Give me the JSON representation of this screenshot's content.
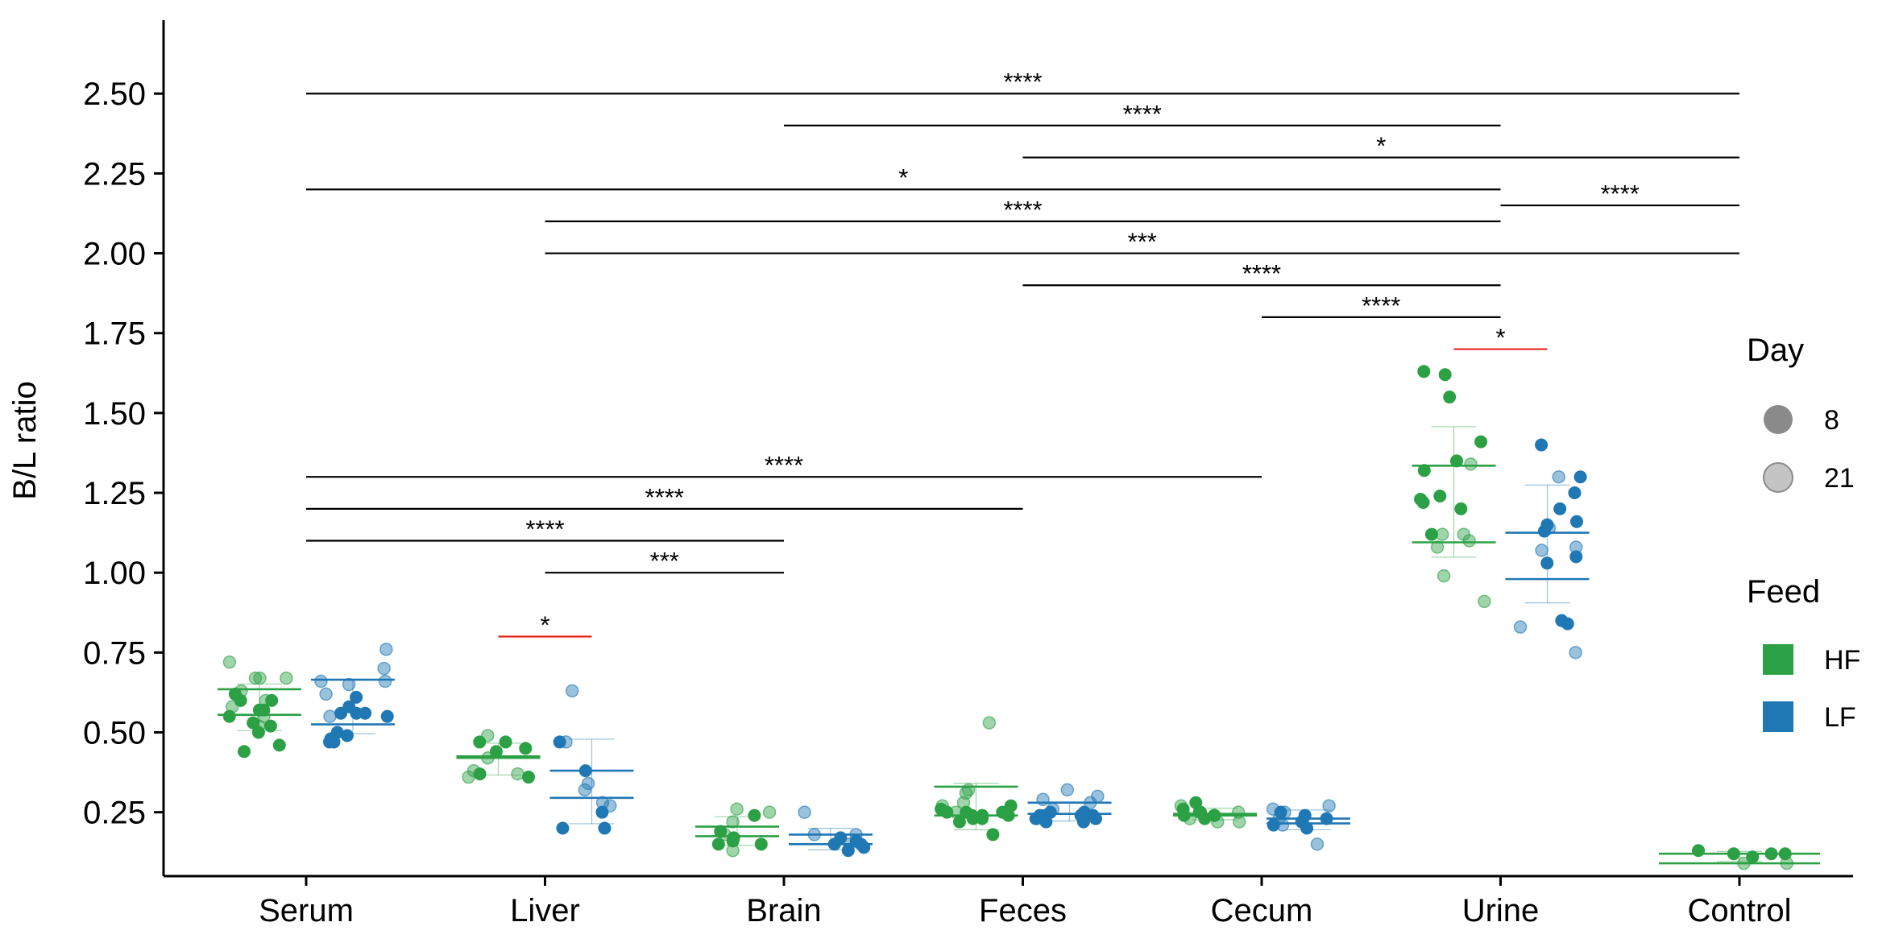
{
  "chart_data": {
    "type": "scatter",
    "ylabel": "B/L ratio",
    "ylim": [
      0.05,
      2.73
    ],
    "yticks": [
      0.25,
      0.5,
      0.75,
      1.0,
      1.25,
      1.5,
      1.75,
      2.0,
      2.25,
      2.5
    ],
    "ytick_labels": [
      "0.25",
      "0.50",
      "0.75",
      "1.00",
      "1.25",
      "1.50",
      "1.75",
      "2.00",
      "2.25",
      "2.50"
    ],
    "categories": [
      "Serum",
      "Liver",
      "Brain",
      "Feces",
      "Cecum",
      "Urine",
      "Control"
    ],
    "colors": {
      "HF": "#2ca044",
      "LF": "#1f77b4",
      "red": "#e8221c",
      "axis": "#000000"
    },
    "legend": {
      "position": "right",
      "day": {
        "title": "Day",
        "items": [
          "8",
          "21"
        ]
      },
      "feed": {
        "title": "Feed",
        "items": [
          "HF",
          "LF"
        ]
      }
    },
    "groups": [
      {
        "category": "Serum",
        "feed": "HF",
        "mean_day8": 0.555,
        "mean_day21": 0.635,
        "day8": [
          0.53,
          0.44,
          0.46,
          0.52,
          0.55,
          0.57,
          0.6,
          0.6,
          0.62,
          0.57,
          0.5
        ],
        "day21": [
          0.52,
          0.55,
          0.58,
          0.63,
          0.67,
          0.67,
          0.72,
          0.67,
          0.6
        ]
      },
      {
        "category": "Serum",
        "feed": "LF",
        "mean_day8": 0.525,
        "mean_day21": 0.665,
        "day8": [
          0.48,
          0.49,
          0.56,
          0.56,
          0.5,
          0.47,
          0.55,
          0.58,
          0.47,
          0.61,
          0.56
        ],
        "day21": [
          0.55,
          0.66,
          0.7,
          0.76,
          0.62,
          0.65,
          0.66
        ]
      },
      {
        "category": "Liver",
        "feed": "HF",
        "mean_day8": 0.425,
        "mean_day21": 0.42,
        "day8": [
          0.36,
          0.37,
          0.45,
          0.44,
          0.47,
          0.47
        ],
        "day21": [
          0.38,
          0.37,
          0.42,
          0.49,
          0.36
        ]
      },
      {
        "category": "Liver",
        "feed": "LF",
        "mean_day8": 0.295,
        "mean_day21": 0.38,
        "day8": [
          0.2,
          0.47,
          0.38,
          0.2,
          0.25
        ],
        "day21": [
          0.32,
          0.27,
          0.28,
          0.47,
          0.63,
          0.34
        ]
      },
      {
        "category": "Brain",
        "feed": "HF",
        "mean_day8": 0.175,
        "mean_day21": 0.205,
        "day8": [
          0.15,
          0.17,
          0.16,
          0.19,
          0.15,
          0.24
        ],
        "day21": [
          0.25,
          0.18,
          0.22,
          0.26,
          0.13
        ]
      },
      {
        "category": "Brain",
        "feed": "LF",
        "mean_day8": 0.15,
        "mean_day21": 0.18,
        "day8": [
          0.14,
          0.15,
          0.16,
          0.13,
          0.17,
          0.15
        ],
        "day21": [
          0.25,
          0.18,
          0.15,
          0.18
        ]
      },
      {
        "category": "Feces",
        "feed": "HF",
        "mean_day8": 0.24,
        "mean_day21": 0.33,
        "day8": [
          0.18,
          0.22,
          0.24,
          0.26,
          0.25,
          0.23,
          0.24,
          0.25,
          0.27,
          0.23,
          0.25,
          0.24
        ],
        "day21": [
          0.27,
          0.28,
          0.31,
          0.25,
          0.32,
          0.53
        ]
      },
      {
        "category": "Feces",
        "feed": "LF",
        "mean_day8": 0.245,
        "mean_day21": 0.28,
        "day8": [
          0.23,
          0.24,
          0.25,
          0.22,
          0.24,
          0.23,
          0.25,
          0.24,
          0.22,
          0.23,
          0.24
        ],
        "day21": [
          0.32,
          0.29,
          0.28,
          0.3,
          0.26
        ]
      },
      {
        "category": "Cecum",
        "feed": "HF",
        "mean_day8": 0.245,
        "mean_day21": 0.24,
        "day8": [
          0.26,
          0.25,
          0.24,
          0.24,
          0.23,
          0.28,
          0.25
        ],
        "day21": [
          0.27,
          0.22,
          0.25,
          0.22,
          0.23,
          0.24
        ]
      },
      {
        "category": "Cecum",
        "feed": "LF",
        "mean_day8": 0.215,
        "mean_day21": 0.23,
        "day8": [
          0.25,
          0.2,
          0.22,
          0.21,
          0.23,
          0.24
        ],
        "day21": [
          0.27,
          0.21,
          0.25,
          0.26,
          0.15,
          0.23,
          0.22
        ]
      },
      {
        "category": "Urine",
        "feed": "HF",
        "mean_day8": 1.335,
        "mean_day21": 1.095,
        "day8": [
          1.63,
          1.41,
          1.32,
          1.22,
          1.12,
          1.24,
          1.23,
          1.2,
          1.55,
          1.62,
          1.35
        ],
        "day21": [
          1.34,
          1.12,
          0.91,
          1.1,
          1.12,
          1.08,
          0.99
        ]
      },
      {
        "category": "Urine",
        "feed": "LF",
        "mean_day8": 1.125,
        "mean_day21": 0.98,
        "day8": [
          1.15,
          1.05,
          1.2,
          1.13,
          1.3,
          1.25,
          1.4,
          1.03,
          0.85,
          0.84,
          1.16
        ],
        "day21": [
          1.08,
          1.14,
          1.07,
          0.83,
          0.75,
          1.3
        ]
      },
      {
        "category": "Control",
        "feed": "HF",
        "mean_day8": 0.12,
        "mean_day21": 0.09,
        "day8": [
          0.11,
          0.12,
          0.12,
          0.13,
          0.12
        ],
        "day21": [
          0.09,
          0.09
        ]
      }
    ],
    "significance": [
      {
        "from": "Serum",
        "to": "Control",
        "y": 2.5,
        "label": "****"
      },
      {
        "from": "Brain",
        "to": "Urine",
        "y": 2.4,
        "label": "****"
      },
      {
        "from": "Feces",
        "to": "Control",
        "y": 2.3,
        "label": "*"
      },
      {
        "from": "Serum",
        "to": "Urine",
        "y": 2.2,
        "label": "*"
      },
      {
        "from": "Urine",
        "to": "Control",
        "y": 2.15,
        "label": "****"
      },
      {
        "from": "Liver",
        "to": "Urine",
        "y": 2.1,
        "label": "****"
      },
      {
        "from": "Liver",
        "to": "Control",
        "y": 2.0,
        "label": "***"
      },
      {
        "from": "Feces",
        "to": "Urine",
        "y": 1.9,
        "label": "****"
      },
      {
        "from": "Cecum",
        "to": "Urine",
        "y": 1.8,
        "label": "****"
      },
      {
        "from": "Serum",
        "to": "Cecum",
        "y": 1.3,
        "label": "****"
      },
      {
        "from": "Serum",
        "to": "Feces",
        "y": 1.2,
        "label": "****"
      },
      {
        "from": "Serum",
        "to": "Brain",
        "y": 1.1,
        "label": "****"
      },
      {
        "from": "Liver",
        "to": "Brain",
        "y": 1.0,
        "label": "***"
      }
    ],
    "within_group_significance": [
      {
        "category": "Liver",
        "y": 0.8,
        "label": "*",
        "color": "red"
      },
      {
        "category": "Urine",
        "y": 1.7,
        "label": "*",
        "color": "red"
      }
    ]
  }
}
